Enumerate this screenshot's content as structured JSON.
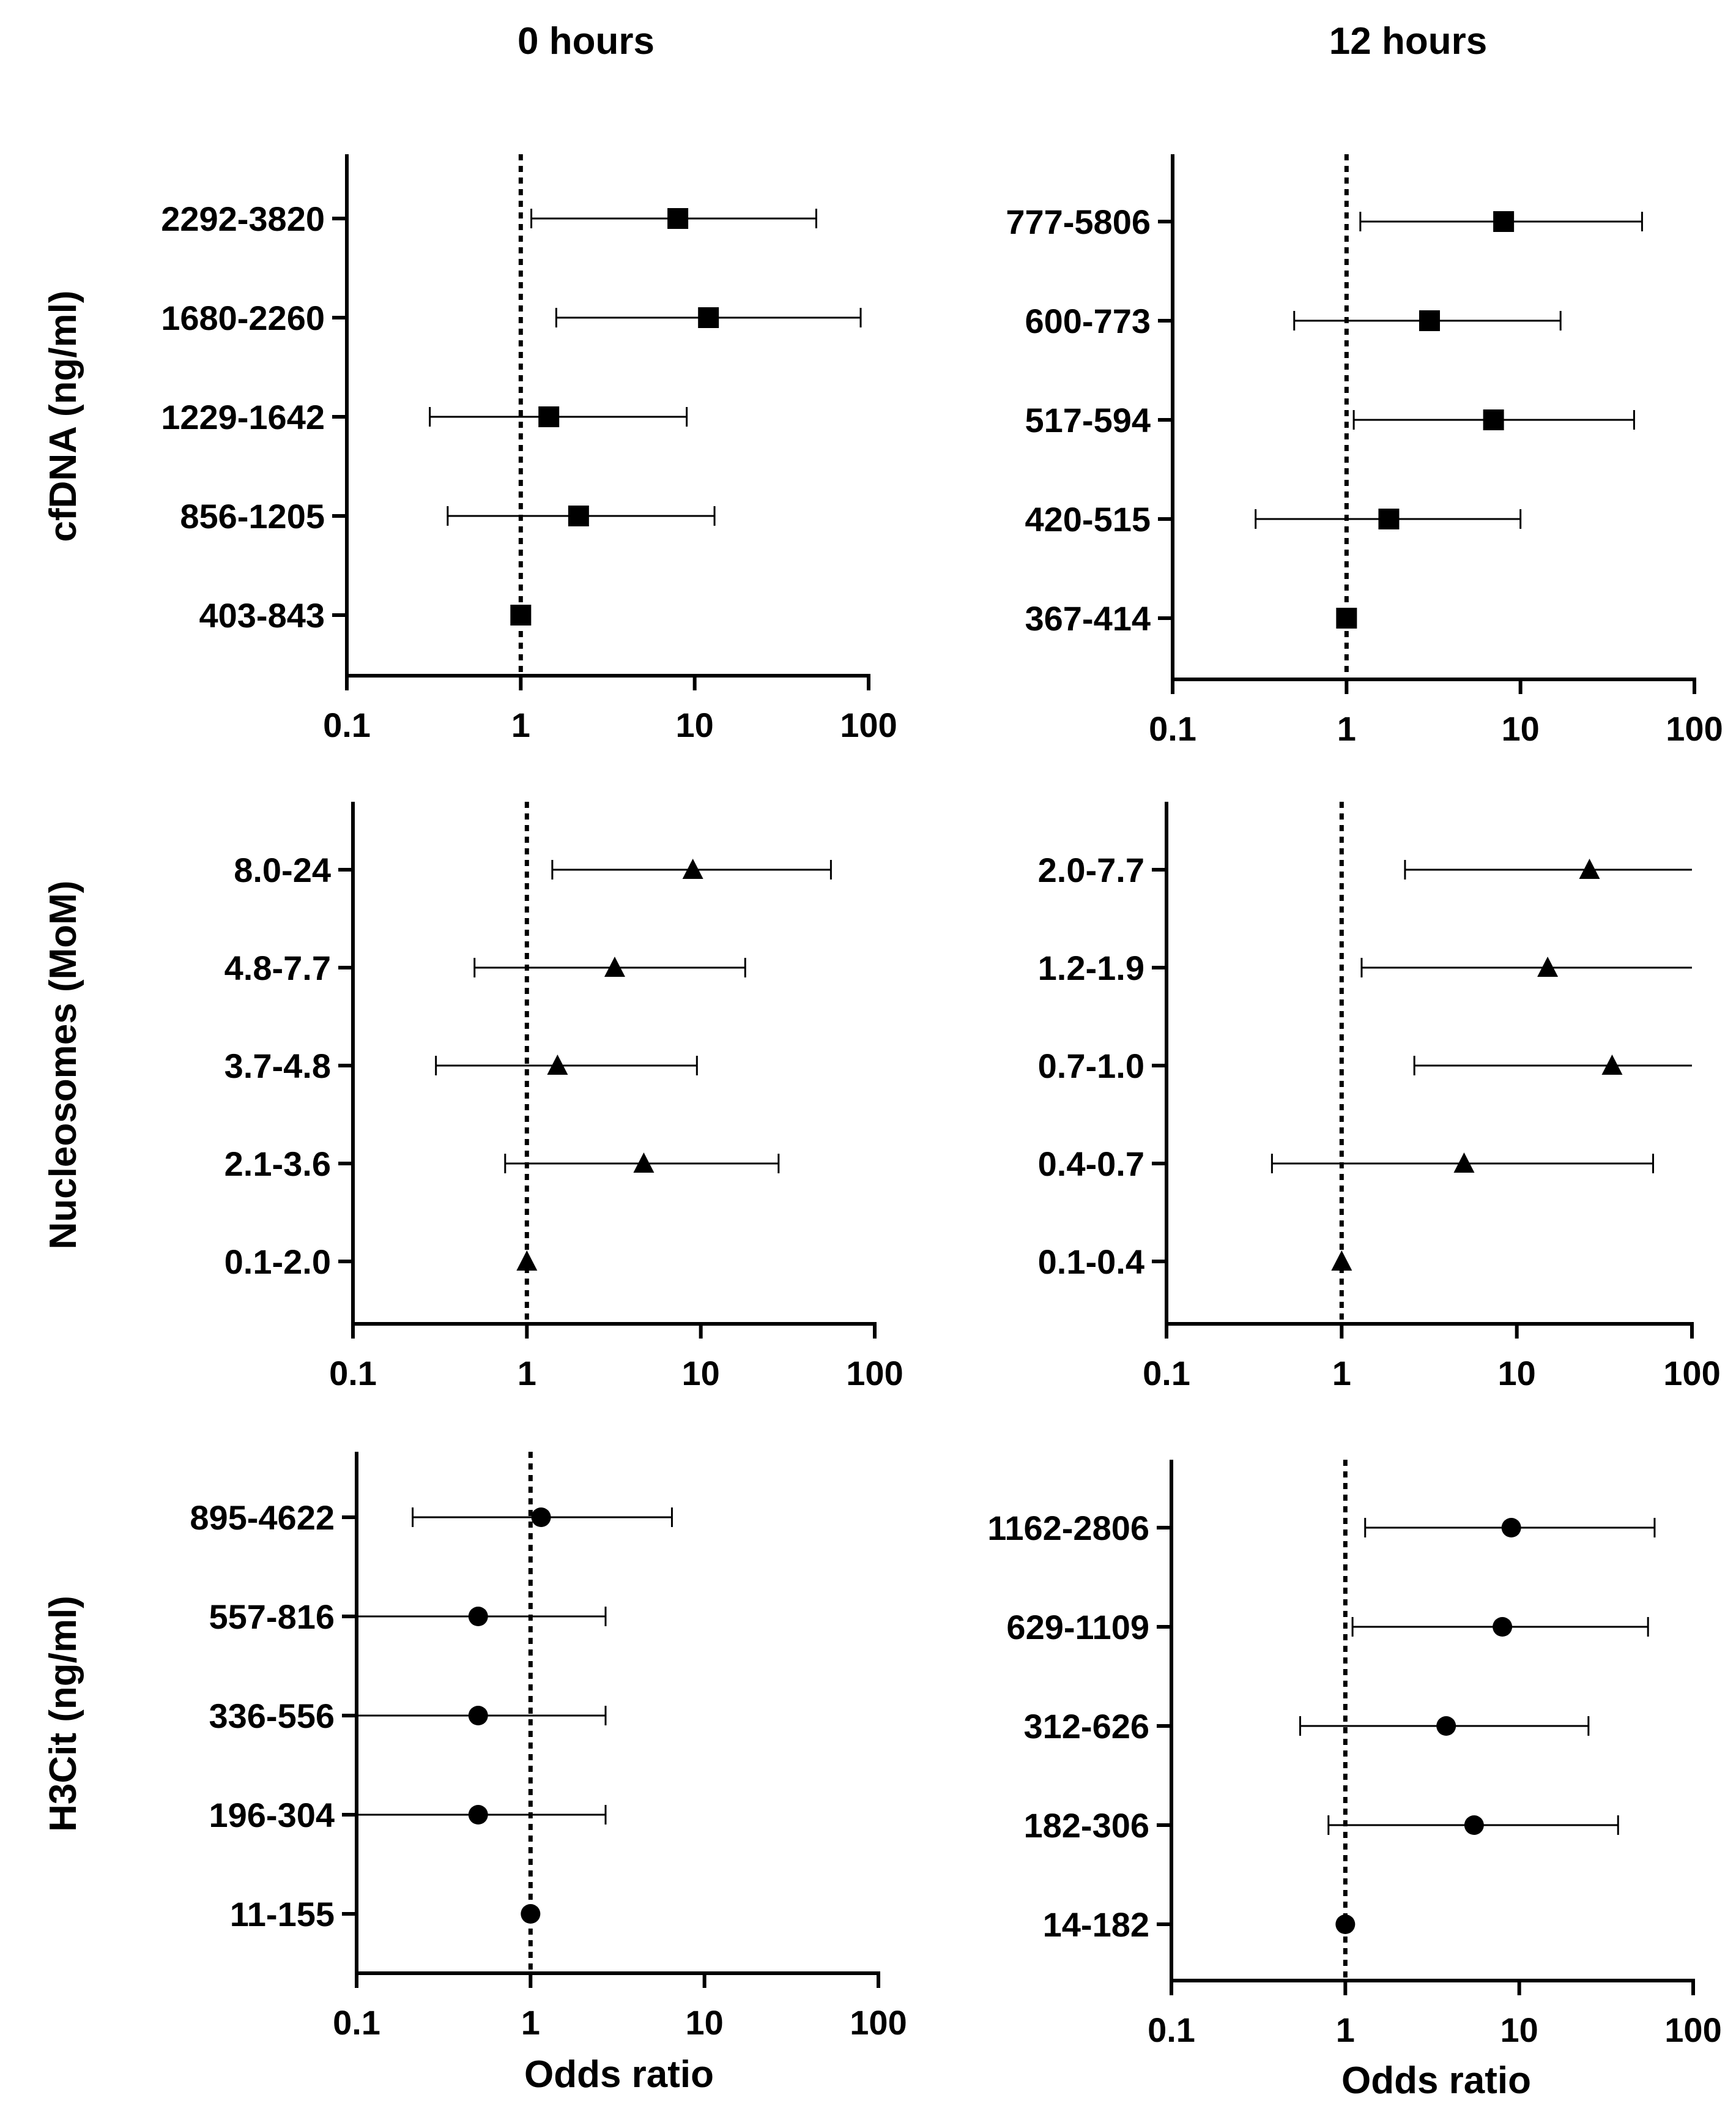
{
  "column_titles": [
    "0 hours",
    "12 hours"
  ],
  "row_labels": [
    "cfDNA (ng/ml)",
    "Nucleosomes (MoM)",
    "H3Cit (ng/ml)"
  ],
  "axis_title": "Odds ratio",
  "colors": {
    "ink": "#000000",
    "background": "#ffffff"
  },
  "chart_data": [
    {
      "type": "forest",
      "scale": "log",
      "xlim": [
        0.1,
        100
      ],
      "xticks": [
        "0.1",
        "1",
        "10",
        "100"
      ],
      "reference": 1,
      "column": "0 hours",
      "row": "cfDNA (ng/ml)",
      "marker": "square",
      "categories": [
        "2292-3820",
        "1680-2260",
        "1229-1642",
        "856-1205",
        "403-843"
      ],
      "estimate": [
        8,
        12,
        1.45,
        2.15,
        1
      ],
      "lower": [
        1.15,
        1.6,
        0.3,
        0.38,
        null
      ],
      "upper": [
        50,
        90,
        9,
        13,
        null
      ]
    },
    {
      "type": "forest",
      "scale": "log",
      "xlim": [
        0.1,
        100
      ],
      "xticks": [
        "0.1",
        "1",
        "10",
        "100"
      ],
      "reference": 1,
      "column": "12 hours",
      "row": "cfDNA (ng/ml)",
      "marker": "square",
      "categories": [
        "777-5806",
        "600-773",
        "517-594",
        "420-515",
        "367-414"
      ],
      "estimate": [
        8,
        3,
        7,
        1.75,
        1
      ],
      "lower": [
        1.2,
        0.5,
        1.1,
        0.3,
        null
      ],
      "upper": [
        50,
        17,
        45,
        10,
        null
      ]
    },
    {
      "type": "forest",
      "scale": "log",
      "xlim": [
        0.1,
        100
      ],
      "xticks": [
        "0.1",
        "1",
        "10",
        "100"
      ],
      "reference": 1,
      "column": "0 hours",
      "row": "Nucleosomes (MoM)",
      "marker": "triangle",
      "categories": [
        "8.0-24",
        "4.8-7.7",
        "3.7-4.8",
        "2.1-3.6",
        "0.1-2.0"
      ],
      "estimate": [
        9,
        3.2,
        1.5,
        4.7,
        1
      ],
      "lower": [
        1.4,
        0.5,
        0.3,
        0.75,
        null
      ],
      "upper": [
        56,
        18,
        9.5,
        28,
        null
      ]
    },
    {
      "type": "forest",
      "scale": "log",
      "xlim": [
        0.1,
        100
      ],
      "xticks": [
        "0.1",
        "1",
        "10",
        "100"
      ],
      "reference": 1,
      "column": "12 hours",
      "row": "Nucleosomes (MoM)",
      "marker": "triangle",
      "categories": [
        "2.0-7.7",
        "1.2-1.9",
        "0.7-1.0",
        "0.4-0.7",
        "0.1-0.4"
      ],
      "estimate": [
        26,
        15,
        35,
        5,
        1
      ],
      "lower": [
        2.3,
        1.3,
        2.6,
        0.4,
        null
      ],
      "upper": [
        100,
        100,
        100,
        60,
        null
      ]
    },
    {
      "type": "forest",
      "scale": "log",
      "xlim": [
        0.1,
        100
      ],
      "xticks": [
        "0.1",
        "1",
        "10",
        "100"
      ],
      "reference": 1,
      "column": "0 hours",
      "row": "H3Cit (ng/ml)",
      "marker": "circle",
      "categories": [
        "895-4622",
        "557-816",
        "336-556",
        "196-304",
        "11-155"
      ],
      "estimate": [
        1.15,
        0.5,
        0.5,
        0.5,
        1
      ],
      "lower": [
        0.21,
        0.1,
        0.1,
        0.1,
        null
      ],
      "upper": [
        6.5,
        2.7,
        2.7,
        2.7,
        null
      ]
    },
    {
      "type": "forest",
      "scale": "log",
      "xlim": [
        0.1,
        100
      ],
      "xticks": [
        "0.1",
        "1",
        "10",
        "100"
      ],
      "reference": 1,
      "column": "12 hours",
      "row": "H3Cit (ng/ml)",
      "marker": "circle",
      "categories": [
        "1162-2806",
        "629-1109",
        "312-626",
        "182-306",
        "14-182"
      ],
      "estimate": [
        9,
        8,
        3.8,
        5.5,
        1
      ],
      "lower": [
        1.3,
        1.1,
        0.55,
        0.8,
        null
      ],
      "upper": [
        60,
        55,
        25,
        37,
        null
      ]
    }
  ]
}
